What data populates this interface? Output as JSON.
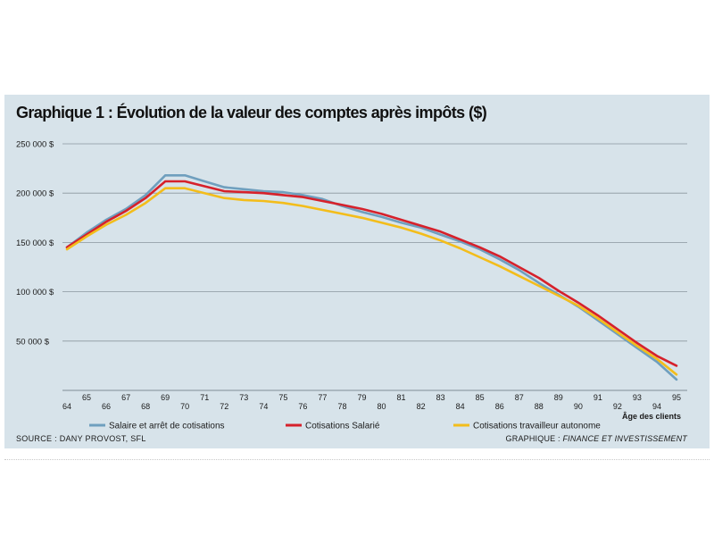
{
  "chart_data": {
    "type": "line",
    "title": "Graphique 1 : Évolution de la valeur des comptes après impôts ($)",
    "xlabel": "Âge des clients",
    "ylabel": "",
    "x": [
      64,
      65,
      66,
      67,
      68,
      69,
      70,
      71,
      72,
      73,
      74,
      75,
      76,
      77,
      78,
      79,
      80,
      81,
      82,
      83,
      84,
      85,
      86,
      87,
      88,
      89,
      90,
      91,
      92,
      93,
      94,
      95
    ],
    "ylim": [
      0,
      250000
    ],
    "yticks": [
      {
        "value": 50000,
        "label": "50 000 $"
      },
      {
        "value": 100000,
        "label": "100 000 $"
      },
      {
        "value": 150000,
        "label": "150 000 $"
      },
      {
        "value": 200000,
        "label": "200 000 $"
      },
      {
        "value": 250000,
        "label": "250 000 $"
      }
    ],
    "grid": true,
    "legend_position": "bottom",
    "series": [
      {
        "name": "Salaire et arrêt de cotisations",
        "color": "#6f9fbe",
        "values": [
          145000,
          160000,
          173000,
          184000,
          198000,
          218000,
          218000,
          212000,
          206000,
          204000,
          202000,
          201000,
          198000,
          194000,
          187000,
          181000,
          176000,
          170000,
          165000,
          158000,
          151000,
          143000,
          133000,
          122000,
          109000,
          97000,
          85000,
          71000,
          57000,
          43000,
          29000,
          11000
        ]
      },
      {
        "name": "Cotisations Salarié",
        "color": "#d6212b",
        "values": [
          145000,
          158000,
          171000,
          182000,
          195000,
          212000,
          212000,
          207000,
          202000,
          201000,
          200000,
          198000,
          196000,
          192000,
          188000,
          184000,
          179000,
          173000,
          167000,
          161000,
          153000,
          145000,
          136000,
          125000,
          114000,
          101000,
          89000,
          76000,
          62000,
          48000,
          35000,
          25000
        ]
      },
      {
        "name": "Cotisations travailleur autonome",
        "color": "#f3bd1b",
        "values": [
          143000,
          156000,
          168000,
          178000,
          190000,
          205000,
          205000,
          200000,
          195000,
          193000,
          192000,
          190000,
          187000,
          183000,
          179000,
          175000,
          170000,
          165000,
          159000,
          152000,
          144000,
          135000,
          126000,
          116000,
          106000,
          96000,
          86000,
          73000,
          59000,
          45000,
          32000,
          16000
        ]
      }
    ],
    "source": "SOURCE : DANY PROVOST, SFL",
    "credit_prefix": "GRAPHIQUE : ",
    "credit_name": "FINANCE ET INVESTISSEMENT"
  }
}
